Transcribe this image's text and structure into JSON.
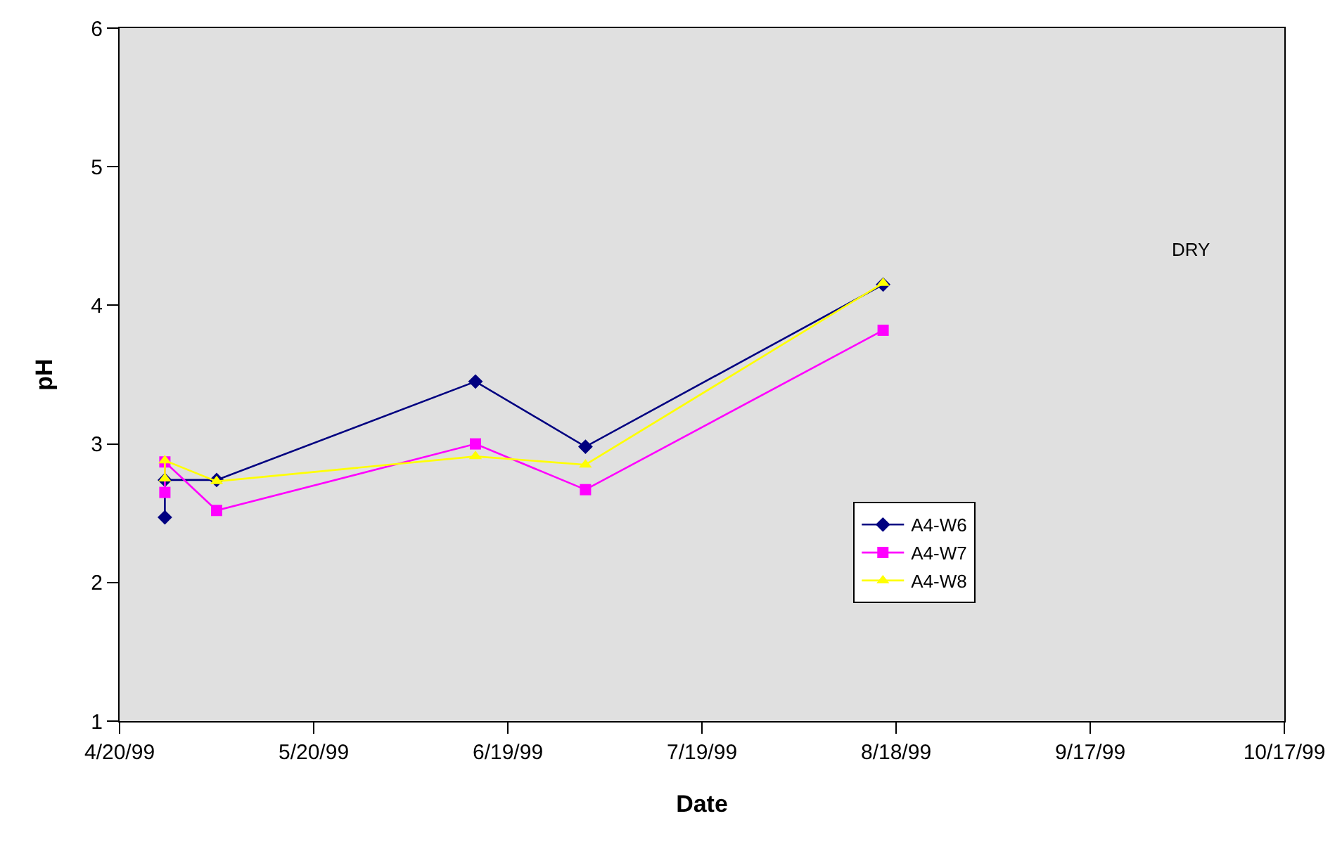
{
  "chart_data": {
    "type": "line",
    "xlabel": "Date",
    "ylabel": "pH",
    "xlim": [
      "1999-04-20",
      "1999-10-17"
    ],
    "xticks": [
      {
        "value": "1999-04-20",
        "label": "4/20/99"
      },
      {
        "value": "1999-05-20",
        "label": "5/20/99"
      },
      {
        "value": "1999-06-19",
        "label": "6/19/99"
      },
      {
        "value": "1999-07-19",
        "label": "7/19/99"
      },
      {
        "value": "1999-08-18",
        "label": "8/18/99"
      },
      {
        "value": "1999-09-17",
        "label": "9/17/99"
      },
      {
        "value": "1999-10-17",
        "label": "10/17/99"
      }
    ],
    "ylim": [
      1,
      6
    ],
    "yticks": [
      1,
      2,
      3,
      4,
      5,
      6
    ],
    "grid": false,
    "legend": "bottom right",
    "series": [
      {
        "name": "A4-W6",
        "color": "#000080",
        "marker": "diamond",
        "x": [
          "1999-04-27",
          "1999-04-27",
          "1999-05-05",
          "1999-06-14",
          "1999-07-01",
          "1999-08-16"
        ],
        "values": [
          2.47,
          2.74,
          2.74,
          3.45,
          2.98,
          4.15
        ]
      },
      {
        "name": "A4-W7",
        "color": "#ff00ff",
        "marker": "square",
        "x": [
          "1999-04-27",
          "1999-04-27",
          "1999-05-05",
          "1999-06-14",
          "1999-07-01",
          "1999-08-16"
        ],
        "values": [
          2.65,
          2.87,
          2.52,
          3.0,
          2.67,
          3.82
        ]
      },
      {
        "name": "A4-W8",
        "color": "#ffff00",
        "marker": "triangle",
        "x": [
          "1999-04-27",
          "1999-04-27",
          "1999-05-05",
          "1999-06-14",
          "1999-07-01",
          "1999-08-16"
        ],
        "values": [
          2.75,
          2.88,
          2.73,
          2.91,
          2.85,
          4.16
        ]
      }
    ],
    "annotations": [
      "DRY"
    ]
  }
}
